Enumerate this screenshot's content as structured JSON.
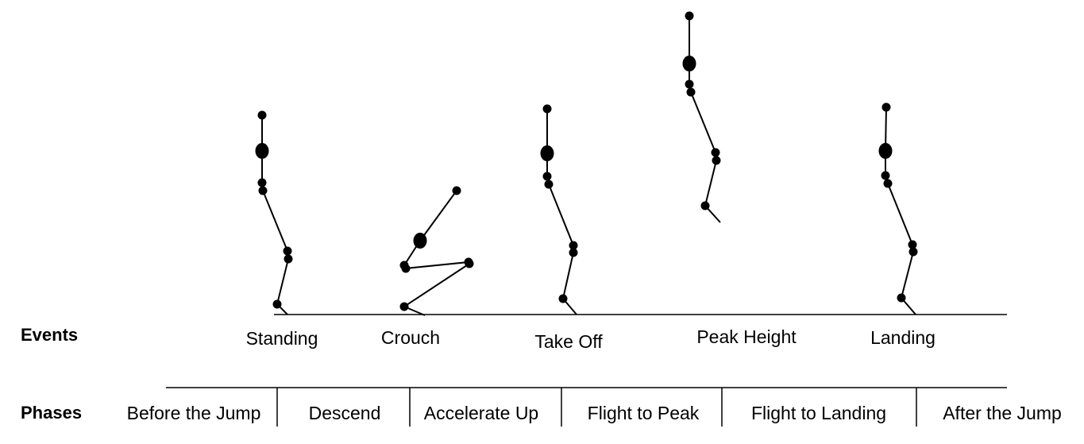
{
  "rows": {
    "events_label": "Events",
    "phases_label": "Phases"
  },
  "events": [
    "Standing",
    "Crouch",
    "Take Off",
    "Peak Height",
    "Landing"
  ],
  "phases": [
    "Before the Jump",
    "Descend",
    "Accelerate Up",
    "Flight to Peak",
    "Flight to Landing",
    "After the Jump"
  ],
  "figure_poses": [
    "standing",
    "crouch",
    "take-off",
    "peak-height",
    "landing"
  ],
  "colors": {
    "ink": "#000000",
    "background": "#ffffff"
  }
}
